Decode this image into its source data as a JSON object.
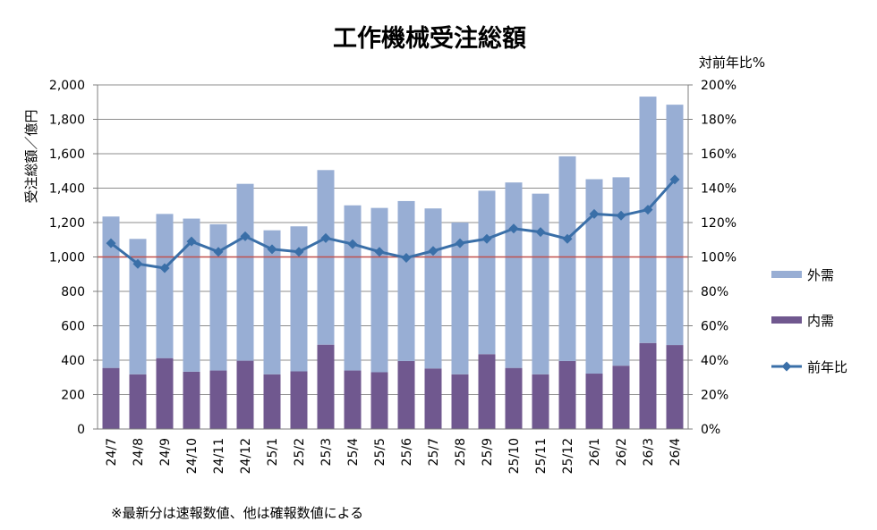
{
  "chart_data": {
    "type": "bar",
    "stacked": true,
    "title": "工作機械受注総額",
    "ylabel": "受注総額／億円",
    "y2label": "対前年比%",
    "footnote": "※最新分は速報数値、他は確報数値による",
    "categories": [
      "24/7",
      "24/8",
      "24/9",
      "24/10",
      "24/11",
      "24/12",
      "25/1",
      "25/2",
      "25/3",
      "25/4",
      "25/5",
      "25/6",
      "25/7",
      "25/8",
      "25/9",
      "25/10",
      "25/11",
      "25/12",
      "26/1",
      "26/2",
      "26/3",
      "26/4"
    ],
    "series": [
      {
        "name": "内需",
        "type": "bar",
        "axis": "left",
        "color": "#70588f",
        "values": [
          355,
          318,
          412,
          333,
          340,
          397,
          318,
          335,
          490,
          340,
          330,
          395,
          352,
          318,
          435,
          355,
          318,
          395,
          322,
          368,
          500,
          488
        ]
      },
      {
        "name": "外需",
        "type": "bar",
        "axis": "left",
        "color": "#98aed4",
        "values": [
          880,
          787,
          838,
          890,
          850,
          1028,
          837,
          843,
          1015,
          960,
          955,
          930,
          930,
          882,
          950,
          1078,
          1050,
          1190,
          1130,
          1095,
          1432,
          1397
        ]
      },
      {
        "name": "前年比",
        "type": "line",
        "axis": "right",
        "color": "#3a6fa8",
        "values": [
          108,
          96,
          93.5,
          109,
          103,
          112,
          104.5,
          103,
          111,
          107.5,
          103,
          99.5,
          103.5,
          108,
          110.5,
          116.5,
          114.5,
          110.5,
          125,
          124,
          127.5,
          145
        ]
      }
    ],
    "y_tick_labels": [
      "0",
      "200",
      "400",
      "600",
      "800",
      "1,000",
      "1,200",
      "1,400",
      "1,600",
      "1,800",
      "2,000"
    ],
    "y2_tick_labels": [
      "0%",
      "20%",
      "40%",
      "60%",
      "80%",
      "100%",
      "120%",
      "140%",
      "160%",
      "180%",
      "200%"
    ],
    "ylim": [
      0,
      2000
    ],
    "y2lim": [
      0,
      200
    ],
    "reference_line": {
      "value": 1000,
      "color": "#c0504d"
    },
    "grid": true,
    "legend_position": "right",
    "legend_order": [
      "外需",
      "内需",
      "前年比"
    ]
  }
}
